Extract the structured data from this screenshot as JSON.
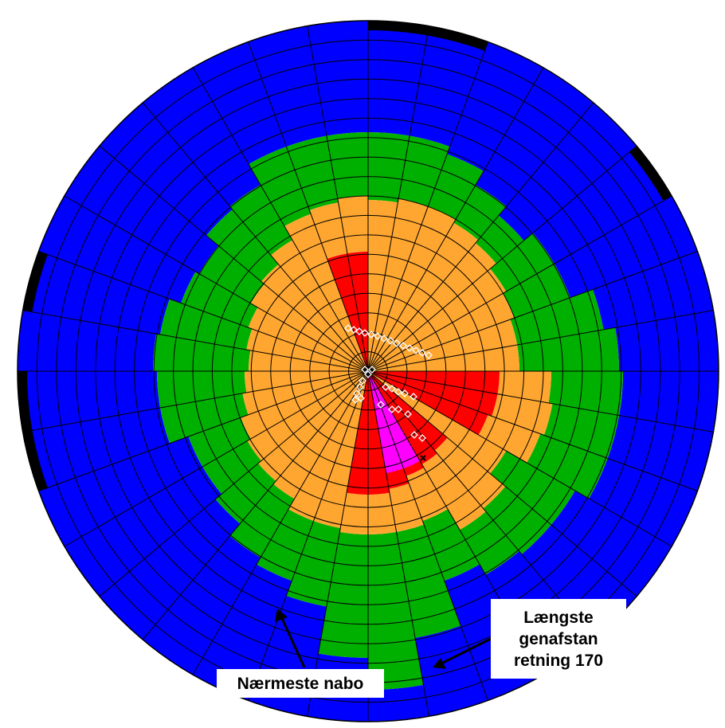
{
  "diagram": {
    "type": "polar-sector-grid",
    "sectors": 36,
    "sector_width_deg": 10,
    "rings": 18,
    "colors": {
      "blue": "#0000ff",
      "green": "#00b000",
      "orange": "#ffa630",
      "red": "#ff0000",
      "magenta": "#ff00ff",
      "black": "#000000",
      "grid_line": "#000000",
      "sample_marker": "#ffffff"
    },
    "legend_shown": false
  },
  "callouts": {
    "nearest_neighbour": {
      "text": "Nærmeste nabo"
    },
    "longest_repeat": {
      "lines": [
        "Længste",
        "genafstan",
        "retning 170"
      ]
    }
  }
}
